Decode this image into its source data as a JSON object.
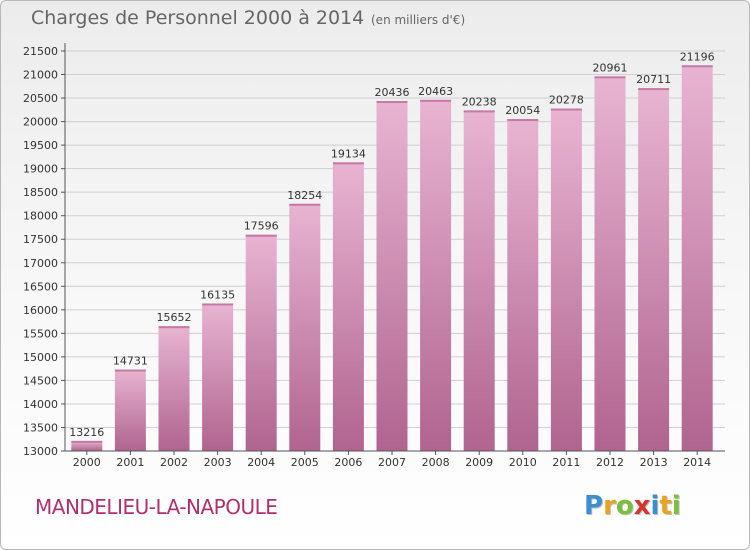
{
  "header": {
    "title": "Charges de Personnel 2000 à 2014",
    "subtitle": "(en milliers d'€)"
  },
  "footer": {
    "commune": "MANDELIEU-LA-NAPOULE",
    "logo_letters": [
      "P",
      "r",
      "o",
      "x",
      "i",
      "t",
      "i"
    ],
    "logo_colors": [
      "#3b8fd1",
      "#e8a320",
      "#7bbf3a",
      "#d8342b",
      "#3b8fd1",
      "#e8a320",
      "#7bbf3a"
    ]
  },
  "colors": {
    "bar_top": "#e8b4d2",
    "bar_bottom": "#b0648f",
    "bar_accent": "#c47aa5",
    "grid": "#cfcfcf",
    "text": "#333333"
  },
  "chart_data": {
    "type": "bar",
    "categories": [
      "2000",
      "2001",
      "2002",
      "2003",
      "2004",
      "2005",
      "2006",
      "2007",
      "2008",
      "2009",
      "2010",
      "2011",
      "2012",
      "2013",
      "2014"
    ],
    "values": [
      13216,
      14731,
      15652,
      16135,
      17596,
      18254,
      19134,
      20436,
      20463,
      20238,
      20054,
      20278,
      20961,
      20711,
      21196
    ],
    "data_labels": [
      "13216",
      "14731",
      "15652",
      "16135",
      "17596",
      "18254",
      "19134",
      "20436",
      "20463",
      "20238",
      "20054",
      "20278",
      "20961",
      "20711",
      "21196"
    ],
    "yticks": [
      13000,
      13500,
      14000,
      14500,
      15000,
      15500,
      16000,
      16500,
      17000,
      17500,
      18000,
      18500,
      19000,
      19500,
      20000,
      20500,
      21000,
      21500
    ],
    "ytick_labels": [
      "13000",
      "13500",
      "14000",
      "14500",
      "15000",
      "15500",
      "16000",
      "16500",
      "17000",
      "17500",
      "18000",
      "18500",
      "19000",
      "19500",
      "20000",
      "20500",
      "21000",
      "21500"
    ],
    "ylim": [
      13000,
      21500
    ],
    "xlabel": "",
    "ylabel": "",
    "grid": true,
    "legend": "none"
  }
}
